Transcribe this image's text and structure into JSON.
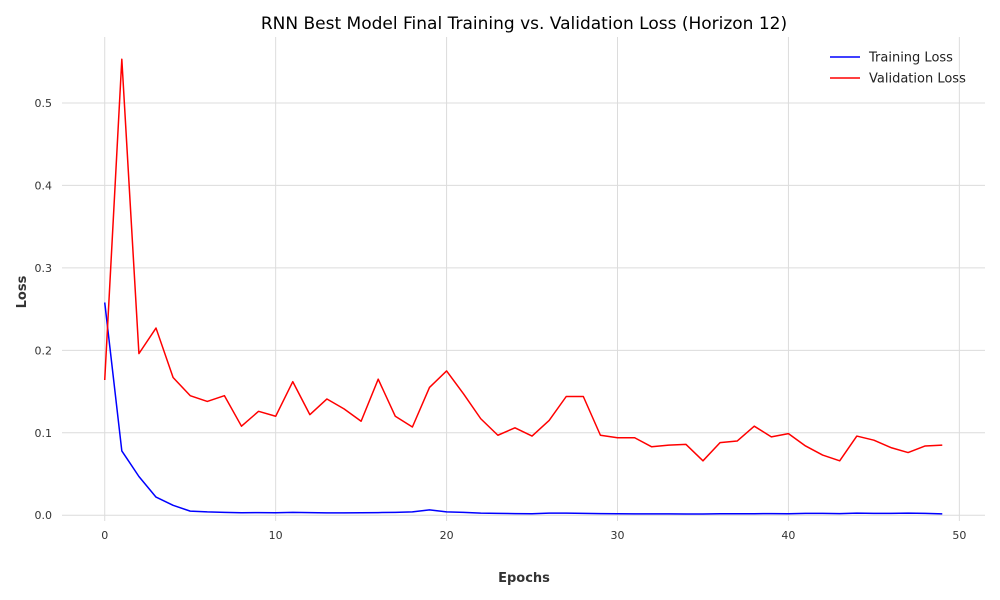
{
  "chart_data": {
    "type": "line",
    "title": "RNN Best Model Final Training vs. Validation Loss (Horizon 12)",
    "xlabel": "Epochs",
    "ylabel": "Loss",
    "xlim": [
      -2.5,
      51.5
    ],
    "ylim": [
      -0.007,
      0.58
    ],
    "xticks": [
      0,
      10,
      20,
      30,
      40,
      50
    ],
    "yticks": [
      0.0,
      0.1,
      0.2,
      0.3,
      0.4,
      0.5
    ],
    "xtick_labels": [
      "0",
      "10",
      "20",
      "30",
      "40",
      "50"
    ],
    "ytick_labels": [
      "0.0",
      "0.1",
      "0.2",
      "0.3",
      "0.4",
      "0.5"
    ],
    "grid": true,
    "legend_position": "top-right",
    "x": [
      0,
      1,
      2,
      3,
      4,
      5,
      6,
      7,
      8,
      9,
      10,
      11,
      12,
      13,
      14,
      15,
      16,
      17,
      18,
      19,
      20,
      21,
      22,
      23,
      24,
      25,
      26,
      27,
      28,
      29,
      30,
      31,
      32,
      33,
      34,
      35,
      36,
      37,
      38,
      39,
      40,
      41,
      42,
      43,
      44,
      45,
      46,
      47,
      48,
      49
    ],
    "series": [
      {
        "name": "Training Loss",
        "color": "#0000ff",
        "values": [
          0.258,
          0.078,
          0.047,
          0.022,
          0.012,
          0.005,
          0.004,
          0.0035,
          0.003,
          0.0032,
          0.003,
          0.0035,
          0.0032,
          0.0028,
          0.0028,
          0.003,
          0.0032,
          0.0035,
          0.004,
          0.0065,
          0.004,
          0.0035,
          0.0025,
          0.0023,
          0.002,
          0.0018,
          0.0025,
          0.0025,
          0.0022,
          0.002,
          0.0018,
          0.0017,
          0.0016,
          0.0016,
          0.0015,
          0.0015,
          0.0018,
          0.0018,
          0.0018,
          0.002,
          0.0018,
          0.0022,
          0.0022,
          0.002,
          0.0025,
          0.0022,
          0.0022,
          0.0025,
          0.0022,
          0.0017
        ]
      },
      {
        "name": "Validation Loss",
        "color": "#ff0000",
        "values": [
          0.164,
          0.553,
          0.196,
          0.227,
          0.167,
          0.145,
          0.138,
          0.145,
          0.108,
          0.126,
          0.12,
          0.162,
          0.122,
          0.141,
          0.129,
          0.114,
          0.165,
          0.12,
          0.107,
          0.155,
          0.175,
          0.147,
          0.117,
          0.097,
          0.106,
          0.096,
          0.115,
          0.144,
          0.144,
          0.097,
          0.094,
          0.094,
          0.083,
          0.085,
          0.086,
          0.066,
          0.088,
          0.09,
          0.108,
          0.095,
          0.099,
          0.084,
          0.073,
          0.066,
          0.096,
          0.091,
          0.082,
          0.076,
          0.084,
          0.085
        ]
      }
    ]
  }
}
